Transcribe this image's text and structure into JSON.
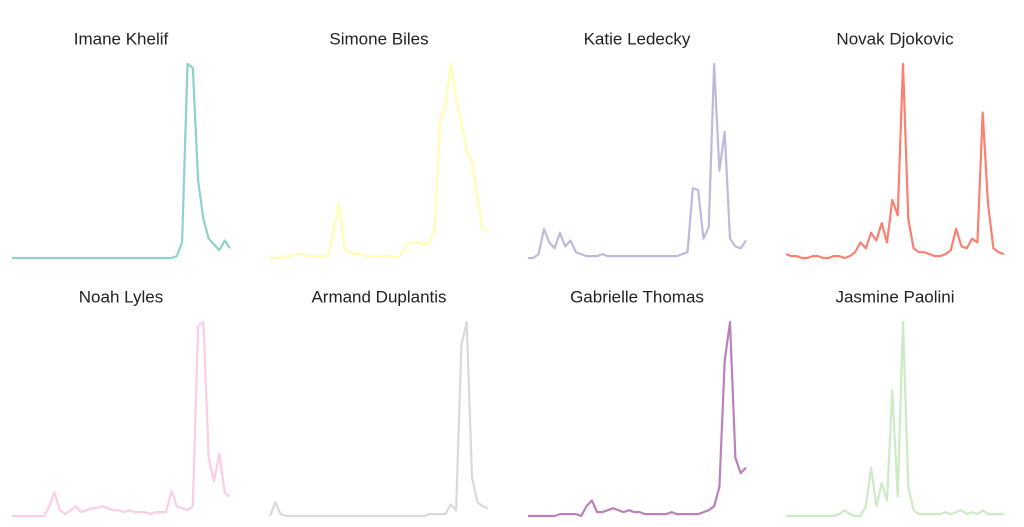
{
  "chart_data": [
    {
      "type": "line",
      "title": "Imane Khelif",
      "color": "#8dd3c7",
      "ylim": [
        0,
        100
      ],
      "values": [
        0,
        0,
        0,
        0,
        0,
        0,
        0,
        0,
        0,
        0,
        0,
        0,
        0,
        0,
        0,
        0,
        0,
        0,
        0,
        0,
        0,
        0,
        0,
        0,
        0,
        0,
        0,
        0,
        0,
        0,
        0,
        1,
        8,
        100,
        98,
        40,
        20,
        10,
        7,
        4,
        9,
        5
      ]
    },
    {
      "type": "line",
      "title": "Simone Biles",
      "color": "#ffffb3",
      "ylim": [
        0,
        100
      ],
      "values": [
        0,
        0,
        0,
        1,
        1,
        2,
        2,
        1,
        1,
        1,
        1,
        1,
        15,
        28,
        5,
        3,
        2,
        2,
        1,
        1,
        1,
        1,
        1,
        1,
        0,
        3,
        8,
        8,
        8,
        7,
        8,
        15,
        72,
        78,
        100,
        82,
        70,
        55,
        50,
        30,
        15,
        14
      ]
    },
    {
      "type": "line",
      "title": "Katie Ledecky",
      "color": "#bebada",
      "ylim": [
        0,
        100
      ],
      "values": [
        0,
        0,
        2,
        15,
        8,
        5,
        13,
        6,
        9,
        3,
        2,
        1,
        1,
        1,
        2,
        1,
        1,
        1,
        1,
        1,
        1,
        1,
        1,
        1,
        1,
        1,
        1,
        1,
        1,
        2,
        3,
        36,
        35,
        10,
        16,
        100,
        45,
        65,
        10,
        6,
        5,
        9
      ]
    },
    {
      "type": "line",
      "title": "Novak Djokovic",
      "color": "#fb8072",
      "ylim": [
        0,
        100
      ],
      "values": [
        2,
        1,
        1,
        0,
        0,
        1,
        1,
        0,
        0,
        1,
        1,
        0,
        1,
        3,
        8,
        5,
        13,
        9,
        18,
        8,
        30,
        22,
        100,
        20,
        5,
        3,
        3,
        2,
        1,
        1,
        2,
        4,
        15,
        6,
        5,
        10,
        8,
        75,
        28,
        5,
        3,
        2
      ]
    },
    {
      "type": "line",
      "title": "Noah Lyles",
      "color": "#fccde5",
      "ylim": [
        0,
        100
      ],
      "values": [
        0,
        0,
        0,
        0,
        0,
        0,
        0,
        5,
        12,
        3,
        1,
        3,
        5,
        2,
        3,
        4,
        4,
        5,
        4,
        3,
        3,
        2,
        3,
        2,
        2,
        2,
        1,
        2,
        2,
        2,
        13,
        5,
        4,
        3,
        5,
        98,
        100,
        30,
        18,
        32,
        12,
        10
      ]
    },
    {
      "type": "line",
      "title": "Armand Duplantis",
      "color": "#d9d9d9",
      "ylim": [
        0,
        100
      ],
      "values": [
        0,
        7,
        1,
        0,
        0,
        0,
        0,
        0,
        0,
        0,
        0,
        0,
        0,
        0,
        0,
        0,
        0,
        0,
        0,
        0,
        0,
        0,
        0,
        0,
        0,
        0,
        0,
        0,
        0,
        0,
        1,
        1,
        1,
        1,
        6,
        3,
        88,
        100,
        20,
        7,
        5,
        4
      ]
    },
    {
      "type": "line",
      "title": "Gabrielle Thomas",
      "color": "#bc80bd",
      "ylim": [
        0,
        100
      ],
      "values": [
        0,
        0,
        0,
        0,
        0,
        0,
        1,
        1,
        1,
        1,
        0,
        5,
        8,
        2,
        2,
        3,
        4,
        3,
        2,
        3,
        2,
        2,
        1,
        1,
        1,
        1,
        1,
        2,
        1,
        1,
        1,
        1,
        1,
        2,
        3,
        5,
        15,
        80,
        100,
        30,
        22,
        25
      ]
    },
    {
      "type": "line",
      "title": "Jasmine Paolini",
      "color": "#ccebc5",
      "ylim": [
        0,
        100
      ],
      "values": [
        0,
        0,
        0,
        0,
        0,
        0,
        0,
        0,
        0,
        0,
        1,
        3,
        1,
        0,
        0,
        5,
        25,
        5,
        17,
        8,
        65,
        10,
        100,
        15,
        3,
        1,
        1,
        1,
        1,
        1,
        2,
        1,
        2,
        3,
        1,
        2,
        1,
        3,
        1,
        1,
        1,
        1
      ]
    }
  ]
}
